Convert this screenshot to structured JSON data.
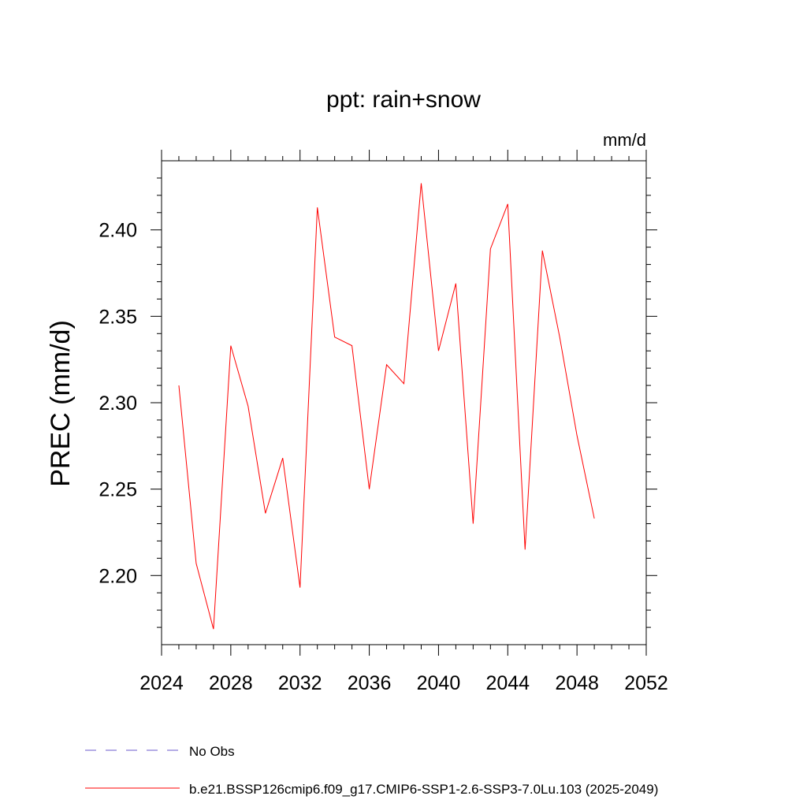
{
  "chart_data": {
    "type": "line",
    "title": "ppt: rain+snow",
    "units_label": "mm/d",
    "ylabel": "PREC  (mm/d)",
    "xlabel": "",
    "xlim": [
      2024,
      2052
    ],
    "ylim": [
      2.16,
      2.44
    ],
    "x_ticks": [
      2024,
      2028,
      2032,
      2036,
      2040,
      2044,
      2048,
      2052
    ],
    "x_tick_labels": [
      "2024",
      "2028",
      "2032",
      "2036",
      "2040",
      "2044",
      "2048",
      "2052"
    ],
    "y_ticks": [
      2.2,
      2.25,
      2.3,
      2.35,
      2.4
    ],
    "y_tick_labels": [
      "2.20",
      "2.25",
      "2.30",
      "2.35",
      "2.40"
    ],
    "grid": false,
    "legend_position": "bottom",
    "series": [
      {
        "name": "No Obs",
        "color": "#6a5acd",
        "dash": "dashed",
        "x": [],
        "values": []
      },
      {
        "name": "b.e21.BSSP126cmip6.f09_g17.CMIP6-SSP1-2.6-SSP3-7.0Lu.103 (2025-2049)",
        "color": "#ff0000",
        "dash": "solid",
        "x": [
          2025,
          2026,
          2027,
          2028,
          2029,
          2030,
          2031,
          2032,
          2033,
          2034,
          2035,
          2036,
          2037,
          2038,
          2039,
          2040,
          2041,
          2042,
          2043,
          2044,
          2045,
          2046,
          2047,
          2048,
          2049
        ],
        "values": [
          2.31,
          2.207,
          2.169,
          2.333,
          2.298,
          2.236,
          2.268,
          2.193,
          2.413,
          2.338,
          2.333,
          2.25,
          2.322,
          2.311,
          2.427,
          2.33,
          2.369,
          2.23,
          2.389,
          2.415,
          2.215,
          2.388,
          2.338,
          2.281,
          2.233
        ]
      }
    ]
  }
}
